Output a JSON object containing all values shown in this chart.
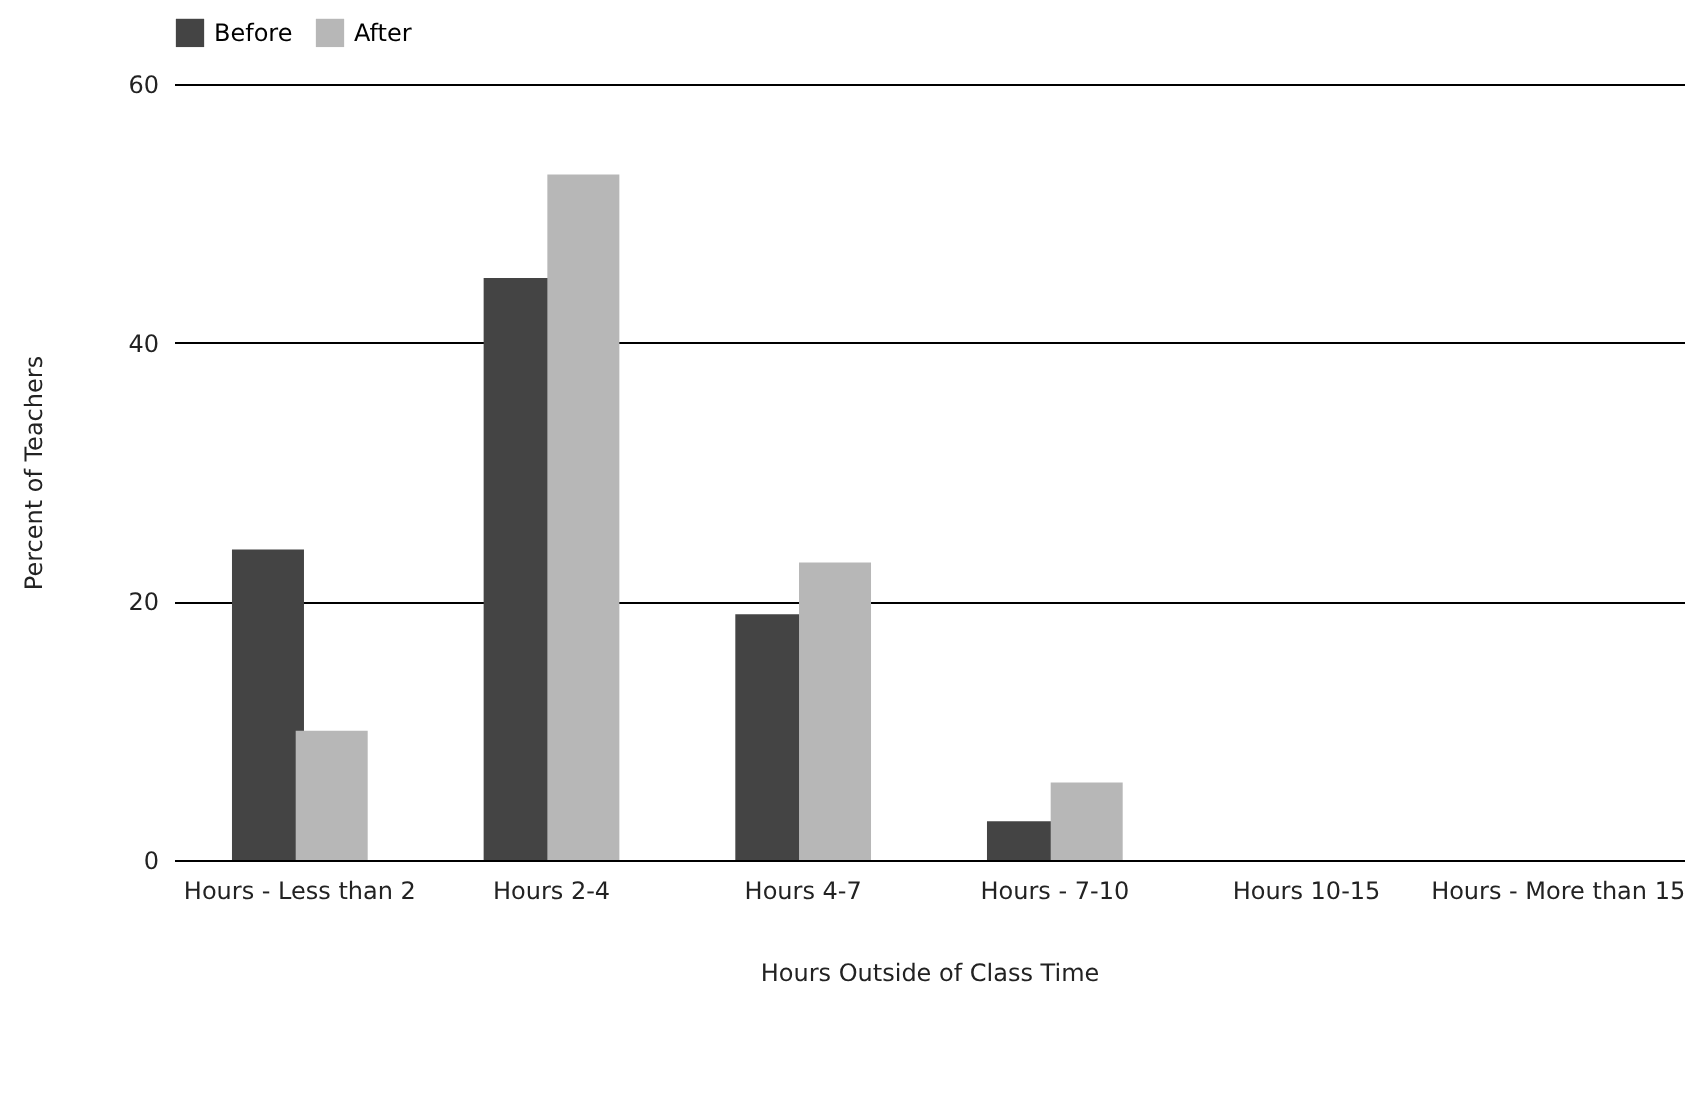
{
  "chart_data": {
    "type": "bar",
    "xlabel": "Hours Outside of Class Time",
    "ylabel": "Percent of Teachers",
    "categories": [
      "Hours - Less than 2",
      "Hours 2-4",
      "Hours 4-7",
      "Hours - 7-10",
      "Hours 10-15",
      "Hours -  More than 15"
    ],
    "series": [
      {
        "name": "Before",
        "color": "#444444",
        "values": [
          24,
          45,
          19,
          3,
          0,
          0
        ]
      },
      {
        "name": "After",
        "color": "#b7b7b7",
        "values": [
          10,
          53,
          23,
          6,
          0,
          0
        ]
      }
    ],
    "ylim": [
      0,
      60
    ],
    "yticks": [
      0,
      20,
      40,
      60
    ],
    "grid": "y",
    "legend": "top"
  }
}
